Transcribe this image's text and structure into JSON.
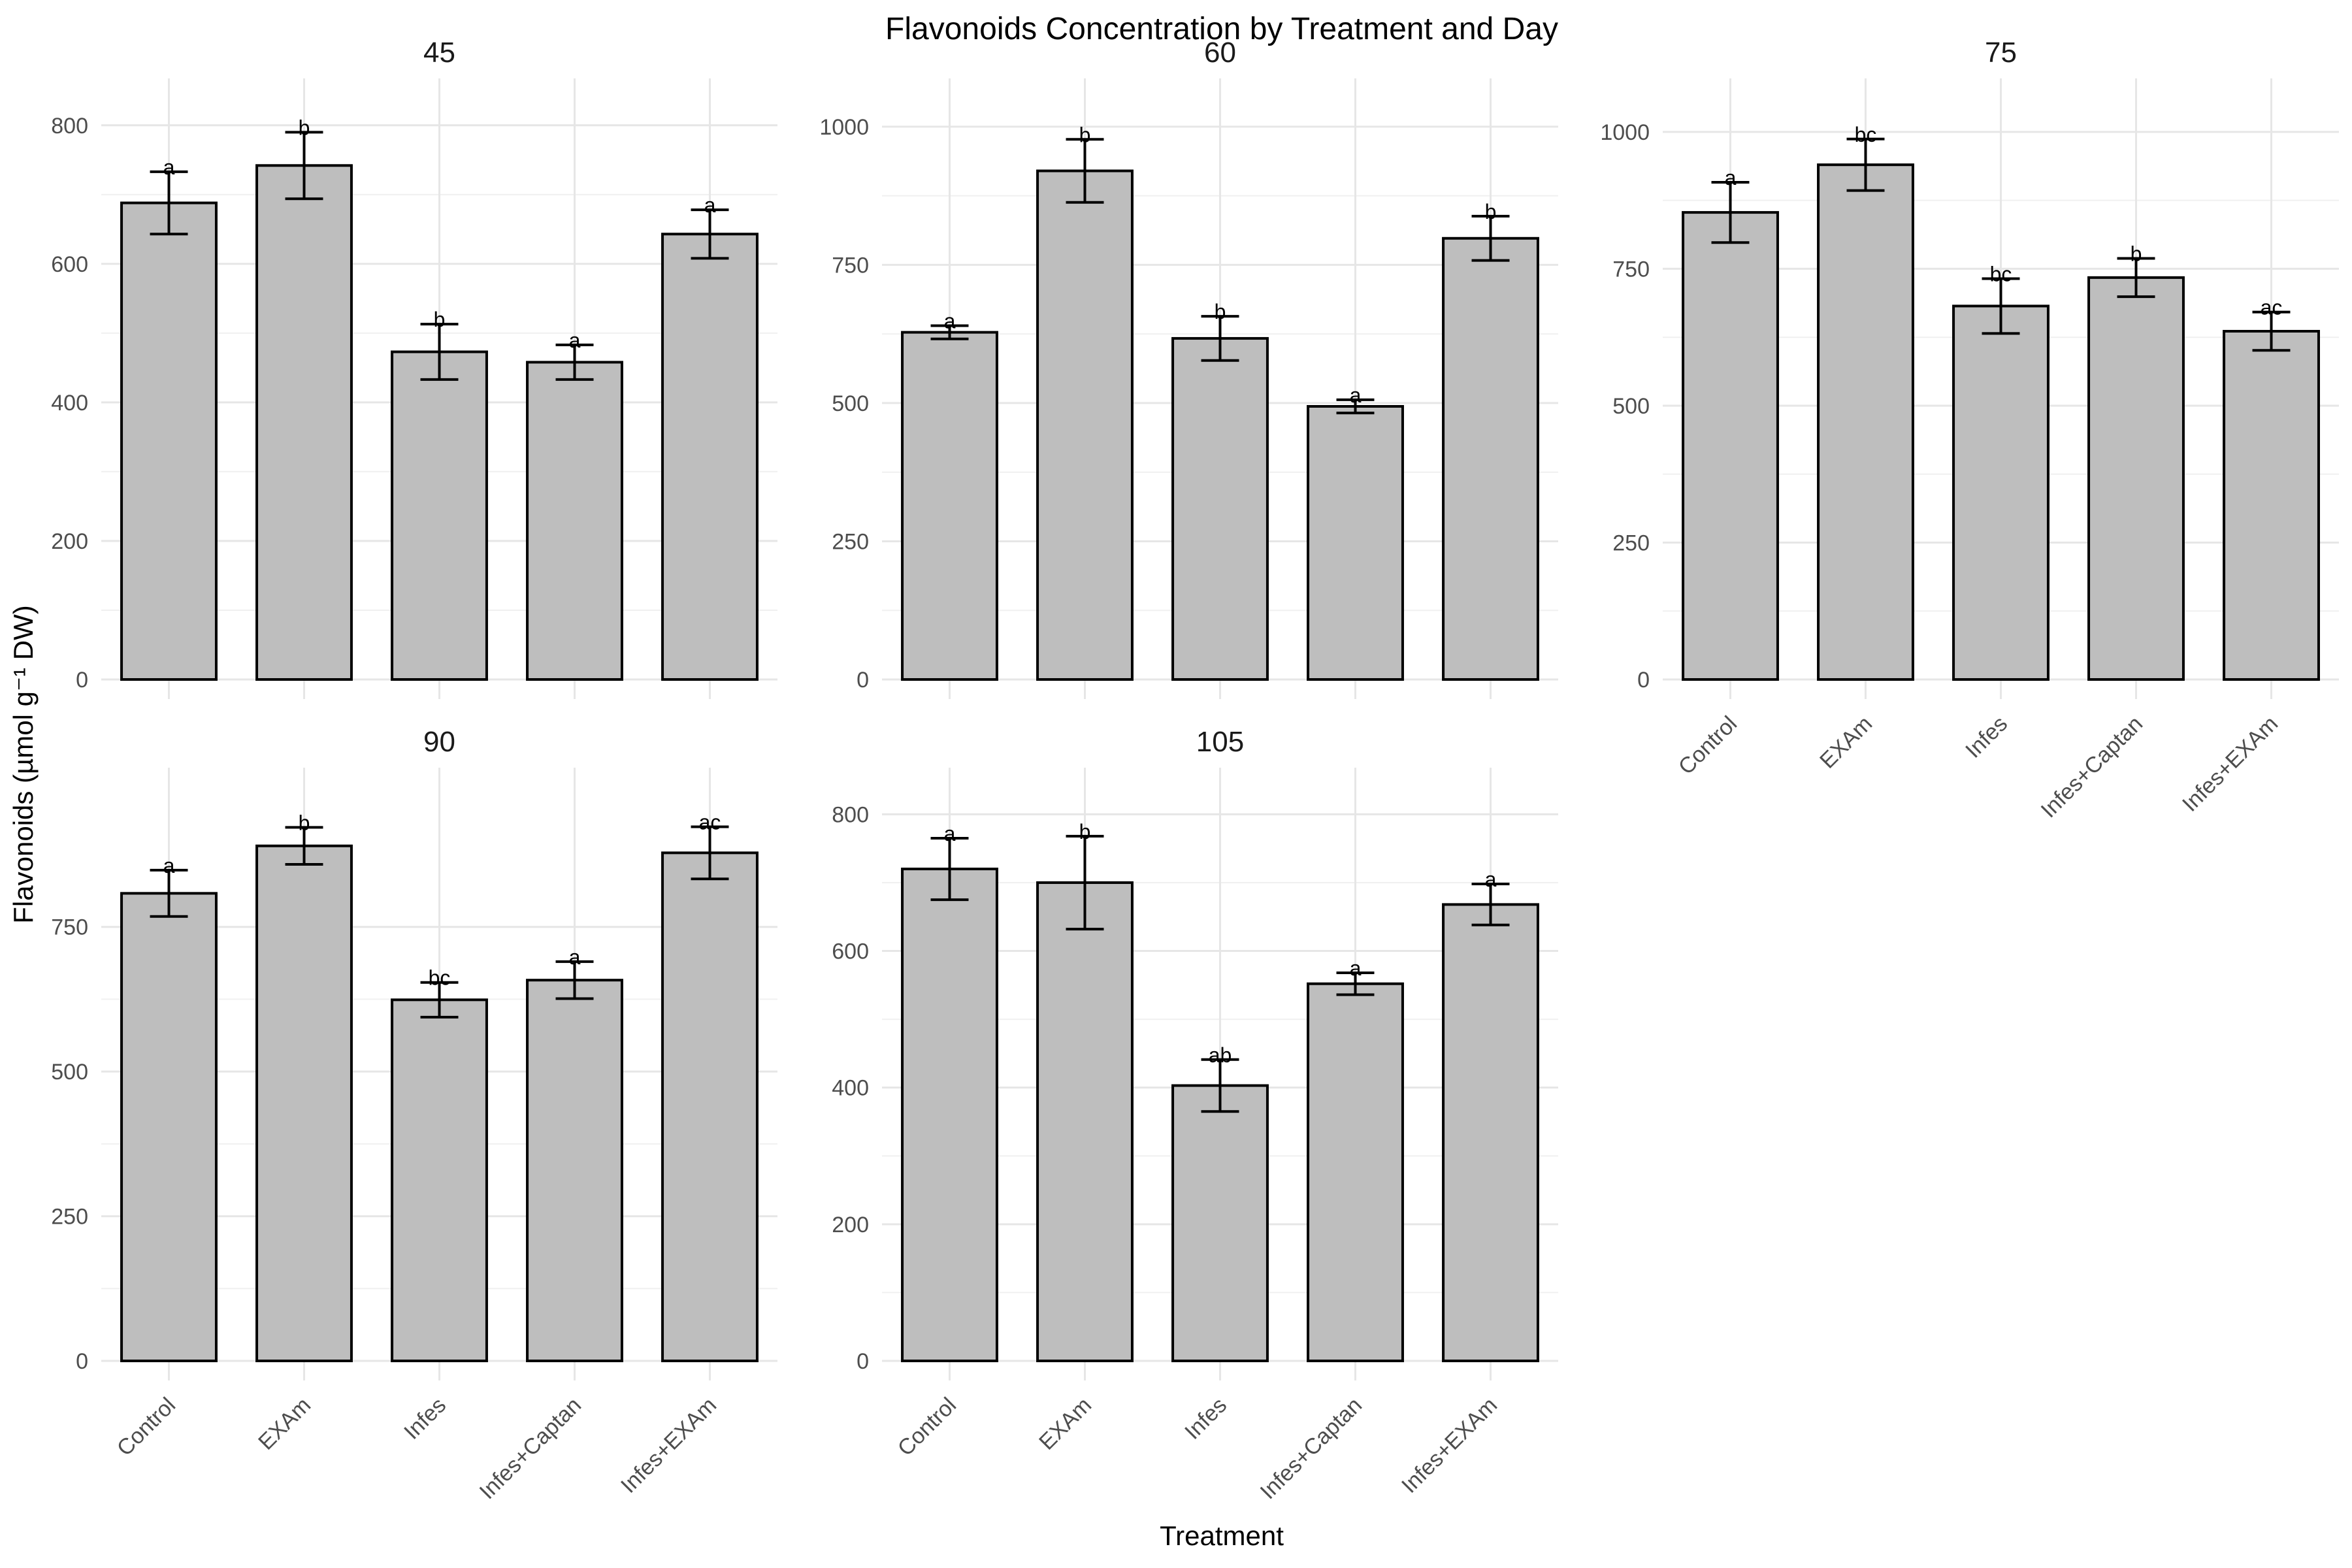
{
  "chart_data": {
    "type": "bar",
    "title": "Flavonoids Concentration by Treatment and Day",
    "xlabel": "Treatment",
    "ylabel": "Flavonoids (µmol g⁻¹ DW)",
    "categories": [
      "Control",
      "EXAm",
      "Infes",
      "Infes+Captan",
      "Infes+EXAm"
    ],
    "bar_color": "#bebebe",
    "grid": true,
    "panels": [
      {
        "title": "45",
        "ylim": [
          0,
          830
        ],
        "yticks": [
          0,
          200,
          400,
          600,
          800
        ],
        "values": [
          688,
          742,
          473,
          458,
          643
        ],
        "errors": [
          45,
          48,
          40,
          25,
          35
        ],
        "letters": [
          "a",
          "b",
          "b",
          "a",
          "a"
        ]
      },
      {
        "title": "60",
        "ylim": [
          0,
          1040
        ],
        "yticks": [
          0,
          250,
          500,
          750,
          1000
        ],
        "values": [
          628,
          920,
          617,
          494,
          798
        ],
        "errors": [
          12,
          57,
          40,
          12,
          40
        ],
        "letters": [
          "a",
          "b",
          "b",
          "a",
          "b"
        ]
      },
      {
        "title": "75",
        "ylim": [
          0,
          1050
        ],
        "yticks": [
          0,
          250,
          500,
          750,
          1000
        ],
        "values": [
          853,
          940,
          682,
          734,
          636
        ],
        "errors": [
          55,
          47,
          50,
          35,
          35
        ],
        "letters": [
          "a",
          "bc",
          "bc",
          "b",
          "ac"
        ]
      },
      {
        "title": "90",
        "ylim": [
          0,
          980
        ],
        "yticks": [
          0,
          250,
          500,
          750
        ],
        "values": [
          808,
          890,
          624,
          658,
          878
        ],
        "errors": [
          40,
          32,
          30,
          32,
          45
        ],
        "letters": [
          "a",
          "b",
          "bc",
          "a",
          "ac"
        ]
      },
      {
        "title": "105",
        "ylim": [
          0,
          830
        ],
        "yticks": [
          0,
          200,
          400,
          600,
          800
        ],
        "values": [
          720,
          700,
          403,
          552,
          668
        ],
        "errors": [
          45,
          68,
          38,
          16,
          30
        ],
        "letters": [
          "a",
          "b",
          "ab",
          "a",
          "a"
        ]
      }
    ]
  }
}
